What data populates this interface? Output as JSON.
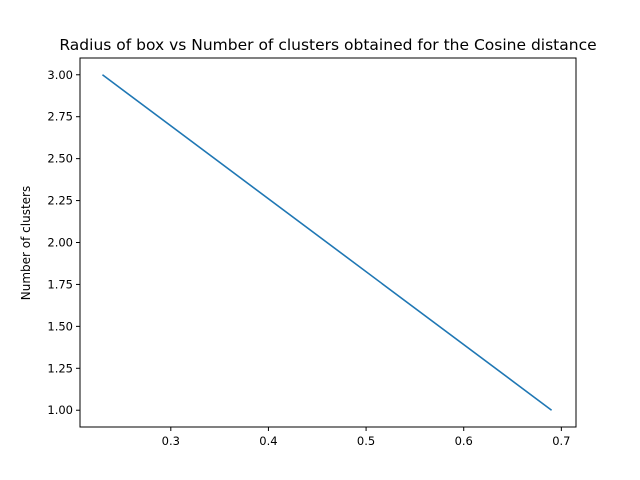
{
  "chart_data": {
    "type": "line",
    "title": "Radius of box vs Number of clusters obtained for the Cosine distance",
    "xlabel": "",
    "ylabel": "Number of clusters",
    "xlim": [
      0.207,
      0.715
    ],
    "ylim": [
      0.9,
      3.1
    ],
    "xticks": [
      0.3,
      0.4,
      0.5,
      0.6,
      0.7
    ],
    "xtick_labels": [
      "0.3",
      "0.4",
      "0.5",
      "0.6",
      "0.7"
    ],
    "yticks": [
      1.0,
      1.25,
      1.5,
      1.75,
      2.0,
      2.25,
      2.5,
      2.75,
      3.0
    ],
    "ytick_labels": [
      "1.00",
      "1.25",
      "1.50",
      "1.75",
      "2.00",
      "2.25",
      "2.50",
      "2.75",
      "3.00"
    ],
    "grid": false,
    "series": [
      {
        "color": "#1f77b4",
        "x": [
          0.23,
          0.69
        ],
        "y": [
          3,
          1
        ]
      }
    ]
  }
}
